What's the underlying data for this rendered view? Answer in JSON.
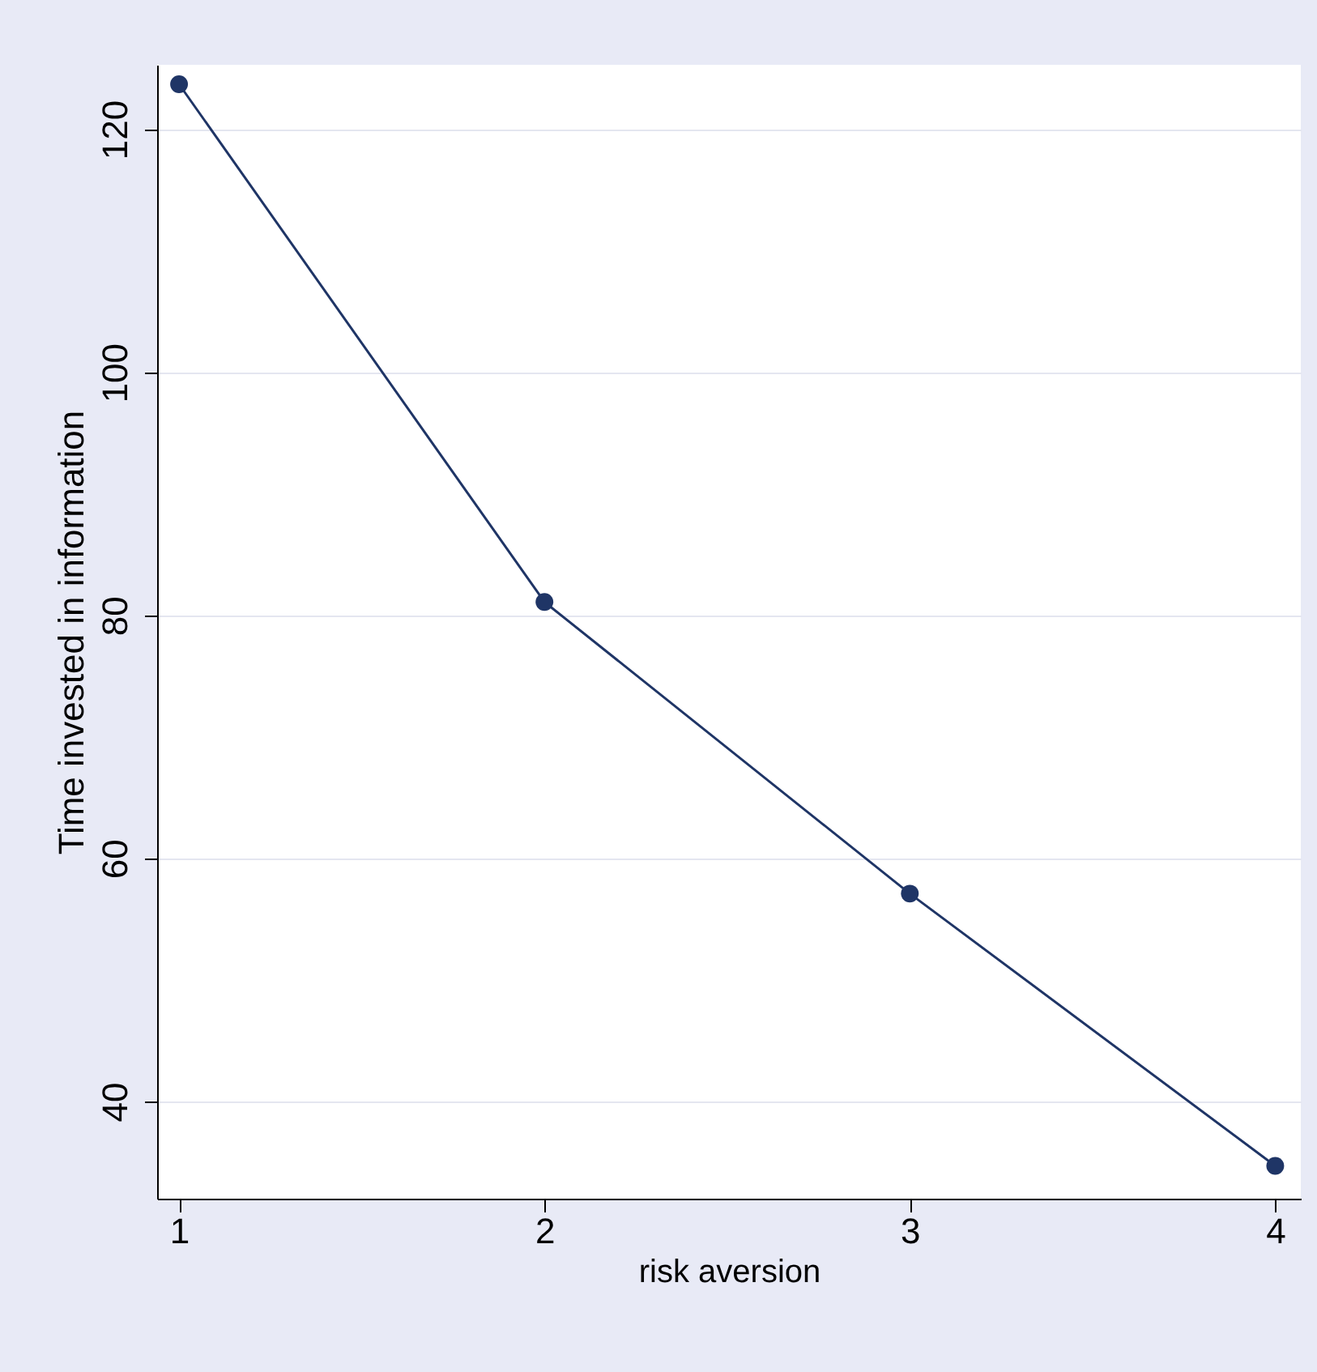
{
  "chart_data": {
    "type": "line",
    "xlabel": "risk aversion",
    "ylabel": "Time invested in information",
    "x": [
      1,
      2,
      3,
      4
    ],
    "series": [
      {
        "color": "#1f3566",
        "values": [
          123.7,
          81.1,
          57.1,
          34.7
        ]
      }
    ],
    "xlim": [
      0.94,
      4.07
    ],
    "xticks": [
      1,
      2,
      3,
      4
    ],
    "ylim": [
      32,
      125.3
    ],
    "yticks": [
      40,
      60,
      80,
      100,
      120
    ],
    "grid": "y",
    "marker": "circle",
    "line_style": "solid"
  }
}
